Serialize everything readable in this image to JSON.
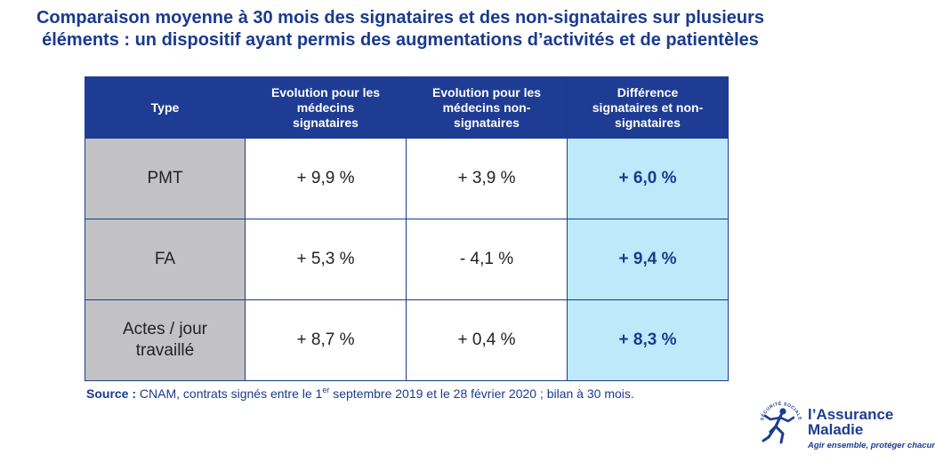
{
  "title": {
    "line1": "Comparaison moyenne à 30 mois des signataires et des non-signataires sur plusieurs",
    "line2": "éléments : un dispositif ayant permis des augmentations d’activités et de patientèles"
  },
  "table": {
    "headers": [
      "Type",
      "Evolution pour les\nmédecins\nsignataires",
      "Evolution pour les\nmédecins non-\nsignataires",
      "Différence\nsignataires et non-\nsignataires"
    ],
    "rows": [
      {
        "type": "PMT",
        "signataires": "+ 9,9 %",
        "non_signataires": "+ 3,9 %",
        "difference": "+ 6,0 %"
      },
      {
        "type": "FA",
        "signataires": "+ 5,3 %",
        "non_signataires": "- 4,1 %",
        "difference": "+ 9,4 %"
      },
      {
        "type": "Actes / jour\ntravaillé",
        "signataires": "+ 8,7 %",
        "non_signataires": "+ 0,4 %",
        "difference": "+ 8,3 %"
      }
    ]
  },
  "source": {
    "label": "Source :",
    "text_before": " CNAM, contrats signés entre le 1",
    "superscript": "er",
    "text_after": " septembre 2019 et le 28 février 2020 ; bilan à 30 mois."
  },
  "logo": {
    "line1": "l’Assurance",
    "line2": "Maladie",
    "tagline": "Agir ensemble, protéger chacun",
    "emblem_text": "SÉCURITÉ SOCIALE",
    "icon": "running-figure-emblem-icon",
    "colors": {
      "blue": "#1e3c93",
      "header_bg": "#1e3c93",
      "difference_bg": "#bde9fa",
      "type_bg": "#c2c2c4"
    }
  }
}
